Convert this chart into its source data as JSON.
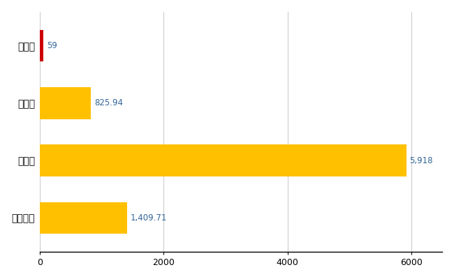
{
  "categories": [
    "普代村",
    "県平均",
    "県最大",
    "全国平均"
  ],
  "values": [
    59,
    825.94,
    5918,
    1409.71
  ],
  "bar_colors": [
    "#cc0000",
    "#ffc000",
    "#ffc000",
    "#ffc000"
  ],
  "labels": [
    "59",
    "825.94",
    "5,918",
    "1,409.71"
  ],
  "xlim": [
    0,
    6500
  ],
  "xticks": [
    0,
    2000,
    4000,
    6000
  ],
  "xtick_labels": [
    "0",
    "2000",
    "4000",
    "6000"
  ],
  "background_color": "#ffffff",
  "grid_color": "#cccccc",
  "bar_height": 0.55,
  "label_color": "#336699",
  "label_fontsize": 8.5
}
